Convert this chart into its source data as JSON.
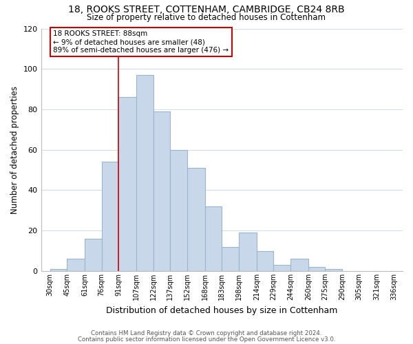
{
  "title1": "18, ROOKS STREET, COTTENHAM, CAMBRIDGE, CB24 8RB",
  "title2": "Size of property relative to detached houses in Cottenham",
  "xlabel": "Distribution of detached houses by size in Cottenham",
  "ylabel": "Number of detached properties",
  "bar_values": [
    1,
    6,
    16,
    54,
    86,
    97,
    79,
    60,
    51,
    32,
    12,
    19,
    10,
    3,
    6,
    2,
    1
  ],
  "bin_edges": [
    30,
    45,
    61,
    76,
    91,
    107,
    122,
    137,
    152,
    168,
    183,
    198,
    214,
    229,
    244,
    260,
    275,
    290
  ],
  "xtick_labels": [
    "30sqm",
    "45sqm",
    "61sqm",
    "76sqm",
    "91sqm",
    "107sqm",
    "122sqm",
    "137sqm",
    "152sqm",
    "168sqm",
    "183sqm",
    "198sqm",
    "214sqm",
    "229sqm",
    "244sqm",
    "260sqm",
    "275sqm",
    "290sqm",
    "305sqm",
    "321sqm",
    "336sqm"
  ],
  "xtick_positions": [
    30,
    45,
    61,
    76,
    91,
    107,
    122,
    137,
    152,
    168,
    183,
    198,
    214,
    229,
    244,
    260,
    275,
    290,
    305,
    321,
    336
  ],
  "bar_color": "#c8d8ea",
  "bar_edge_color": "#9ab4cc",
  "marker_x": 91,
  "marker_color": "#cc0000",
  "ylim": [
    0,
    120
  ],
  "yticks": [
    0,
    20,
    40,
    60,
    80,
    100,
    120
  ],
  "xlim_min": 22,
  "xlim_max": 344,
  "annotation_title": "18 ROOKS STREET: 88sqm",
  "annotation_line1": "← 9% of detached houses are smaller (48)",
  "annotation_line2": "89% of semi-detached houses are larger (476) →",
  "annotation_box_color": "#ffffff",
  "annotation_box_edge": "#cc0000",
  "footer1": "Contains HM Land Registry data © Crown copyright and database right 2024.",
  "footer2": "Contains public sector information licensed under the Open Government Licence v3.0."
}
